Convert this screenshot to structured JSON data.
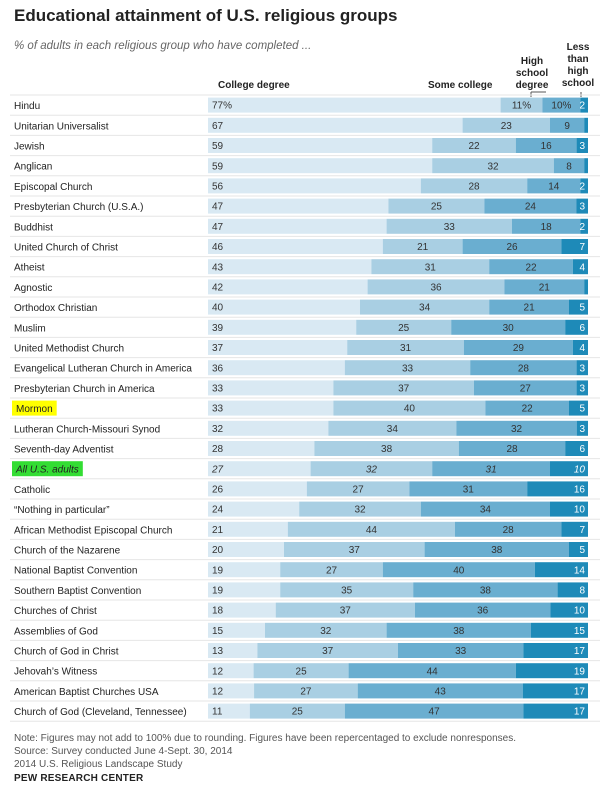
{
  "chart_data": {
    "type": "bar",
    "stacked": true,
    "orientation": "horizontal",
    "title": "Educational attainment of U.S. religious groups",
    "subtitle": "% of adults in each religious group who have completed ...",
    "series": [
      {
        "name": "College degree",
        "color": "#d9e9f3"
      },
      {
        "name": "Some college",
        "color": "#a9cfe3"
      },
      {
        "name": "High school degree",
        "color": "#6aaed0"
      },
      {
        "name": "Less than high school",
        "color": "#1e8ab8"
      }
    ],
    "legend_labels": {
      "college": "College degree",
      "some": "Some college",
      "hs": [
        "High",
        "school",
        "degree"
      ],
      "less": [
        "Less",
        "than",
        "high",
        "school"
      ]
    },
    "highlight_colors": {
      "Mormon": "#ffff00",
      "All U.S. adults": "#33dd33"
    },
    "rows": [
      {
        "label": "Hindu",
        "values": [
          77,
          11,
          10,
          2
        ],
        "display": [
          "77%",
          "11%",
          "10%",
          "2"
        ],
        "highlight": "none"
      },
      {
        "label": "Unitarian Universalist",
        "values": [
          67,
          23,
          9,
          1
        ],
        "display": [
          "67",
          "23",
          "9",
          ""
        ],
        "highlight": "none"
      },
      {
        "label": "Jewish",
        "values": [
          59,
          22,
          16,
          3
        ],
        "display": [
          "59",
          "22",
          "16",
          "3"
        ],
        "highlight": "none"
      },
      {
        "label": "Anglican",
        "values": [
          59,
          32,
          8,
          1
        ],
        "display": [
          "59",
          "32",
          "8",
          ""
        ],
        "highlight": "none"
      },
      {
        "label": "Episcopal Church",
        "values": [
          56,
          28,
          14,
          2
        ],
        "display": [
          "56",
          "28",
          "14",
          "2"
        ],
        "highlight": "none"
      },
      {
        "label": "Presbyterian Church (U.S.A.)",
        "values": [
          47,
          25,
          24,
          3
        ],
        "display": [
          "47",
          "25",
          "24",
          "3"
        ],
        "highlight": "none"
      },
      {
        "label": "Buddhist",
        "values": [
          47,
          33,
          18,
          2
        ],
        "display": [
          "47",
          "33",
          "18",
          "2"
        ],
        "highlight": "none"
      },
      {
        "label": "United Church of Christ",
        "values": [
          46,
          21,
          26,
          7
        ],
        "display": [
          "46",
          "21",
          "26",
          "7"
        ],
        "highlight": "none"
      },
      {
        "label": "Atheist",
        "values": [
          43,
          31,
          22,
          4
        ],
        "display": [
          "43",
          "31",
          "22",
          "4"
        ],
        "highlight": "none"
      },
      {
        "label": "Agnostic",
        "values": [
          42,
          36,
          21,
          1
        ],
        "display": [
          "42",
          "36",
          "21",
          ""
        ],
        "highlight": "none"
      },
      {
        "label": "Orthodox Christian",
        "values": [
          40,
          34,
          21,
          5
        ],
        "display": [
          "40",
          "34",
          "21",
          "5"
        ],
        "highlight": "none"
      },
      {
        "label": "Muslim",
        "values": [
          39,
          25,
          30,
          6
        ],
        "display": [
          "39",
          "25",
          "30",
          "6"
        ],
        "highlight": "none"
      },
      {
        "label": "United Methodist Church",
        "values": [
          37,
          31,
          29,
          4
        ],
        "display": [
          "37",
          "31",
          "29",
          "4"
        ],
        "highlight": "none"
      },
      {
        "label": "Evangelical Lutheran Church in America",
        "values": [
          36,
          33,
          28,
          3
        ],
        "display": [
          "36",
          "33",
          "28",
          "3"
        ],
        "highlight": "none"
      },
      {
        "label": "Presbyterian Church in America",
        "values": [
          33,
          37,
          27,
          3
        ],
        "display": [
          "33",
          "37",
          "27",
          "3"
        ],
        "highlight": "none"
      },
      {
        "label": "Mormon",
        "values": [
          33,
          40,
          22,
          5
        ],
        "display": [
          "33",
          "40",
          "22",
          "5"
        ],
        "highlight": "Mormon"
      },
      {
        "label": "Lutheran Church-Missouri Synod",
        "values": [
          32,
          34,
          32,
          3
        ],
        "display": [
          "32",
          "34",
          "32",
          "3"
        ],
        "highlight": "none"
      },
      {
        "label": "Seventh-day Adventist",
        "values": [
          28,
          38,
          28,
          6
        ],
        "display": [
          "28",
          "38",
          "28",
          "6"
        ],
        "highlight": "none"
      },
      {
        "label": "All U.S. adults",
        "values": [
          27,
          32,
          31,
          10
        ],
        "display": [
          "27",
          "32",
          "31",
          "10"
        ],
        "highlight": "All U.S. adults",
        "italic": true
      },
      {
        "label": "Catholic",
        "values": [
          26,
          27,
          31,
          16
        ],
        "display": [
          "26",
          "27",
          "31",
          "16"
        ],
        "highlight": "none"
      },
      {
        "label": "“Nothing in particular”",
        "values": [
          24,
          32,
          34,
          10
        ],
        "display": [
          "24",
          "32",
          "34",
          "10"
        ],
        "highlight": "none"
      },
      {
        "label": "African Methodist Episcopal Church",
        "values": [
          21,
          44,
          28,
          7
        ],
        "display": [
          "21",
          "44",
          "28",
          "7"
        ],
        "highlight": "none"
      },
      {
        "label": "Church of the Nazarene",
        "values": [
          20,
          37,
          38,
          5
        ],
        "display": [
          "20",
          "37",
          "38",
          "5"
        ],
        "highlight": "none"
      },
      {
        "label": "National Baptist Convention",
        "values": [
          19,
          27,
          40,
          14
        ],
        "display": [
          "19",
          "27",
          "40",
          "14"
        ],
        "highlight": "none"
      },
      {
        "label": "Southern Baptist Convention",
        "values": [
          19,
          35,
          38,
          8
        ],
        "display": [
          "19",
          "35",
          "38",
          "8"
        ],
        "highlight": "none"
      },
      {
        "label": "Churches of Christ",
        "values": [
          18,
          37,
          36,
          10
        ],
        "display": [
          "18",
          "37",
          "36",
          "10"
        ],
        "highlight": "none"
      },
      {
        "label": "Assemblies of God",
        "values": [
          15,
          32,
          38,
          15
        ],
        "display": [
          "15",
          "32",
          "38",
          "15"
        ],
        "highlight": "none"
      },
      {
        "label": "Church of God in Christ",
        "values": [
          13,
          37,
          33,
          17
        ],
        "display": [
          "13",
          "37",
          "33",
          "17"
        ],
        "highlight": "none"
      },
      {
        "label": "Jehovah’s Witness",
        "values": [
          12,
          25,
          44,
          19
        ],
        "display": [
          "12",
          "25",
          "44",
          "19"
        ],
        "highlight": "none"
      },
      {
        "label": "American Baptist Churches USA",
        "values": [
          12,
          27,
          43,
          17
        ],
        "display": [
          "12",
          "27",
          "43",
          "17"
        ],
        "highlight": "none"
      },
      {
        "label": "Church of God (Cleveland, Tennessee)",
        "values": [
          11,
          25,
          47,
          17
        ],
        "display": [
          "11",
          "25",
          "47",
          "17"
        ],
        "highlight": "none"
      }
    ]
  },
  "footer": {
    "note": "Note: Figures may not add to 100% due to rounding. Figures have been repercentaged to exclude nonresponses.",
    "source": "Source: Survey conducted June 4-Sept. 30, 2014",
    "study": "2014 U.S. Religious Landscape Study",
    "brand": "PEW RESEARCH CENTER"
  }
}
